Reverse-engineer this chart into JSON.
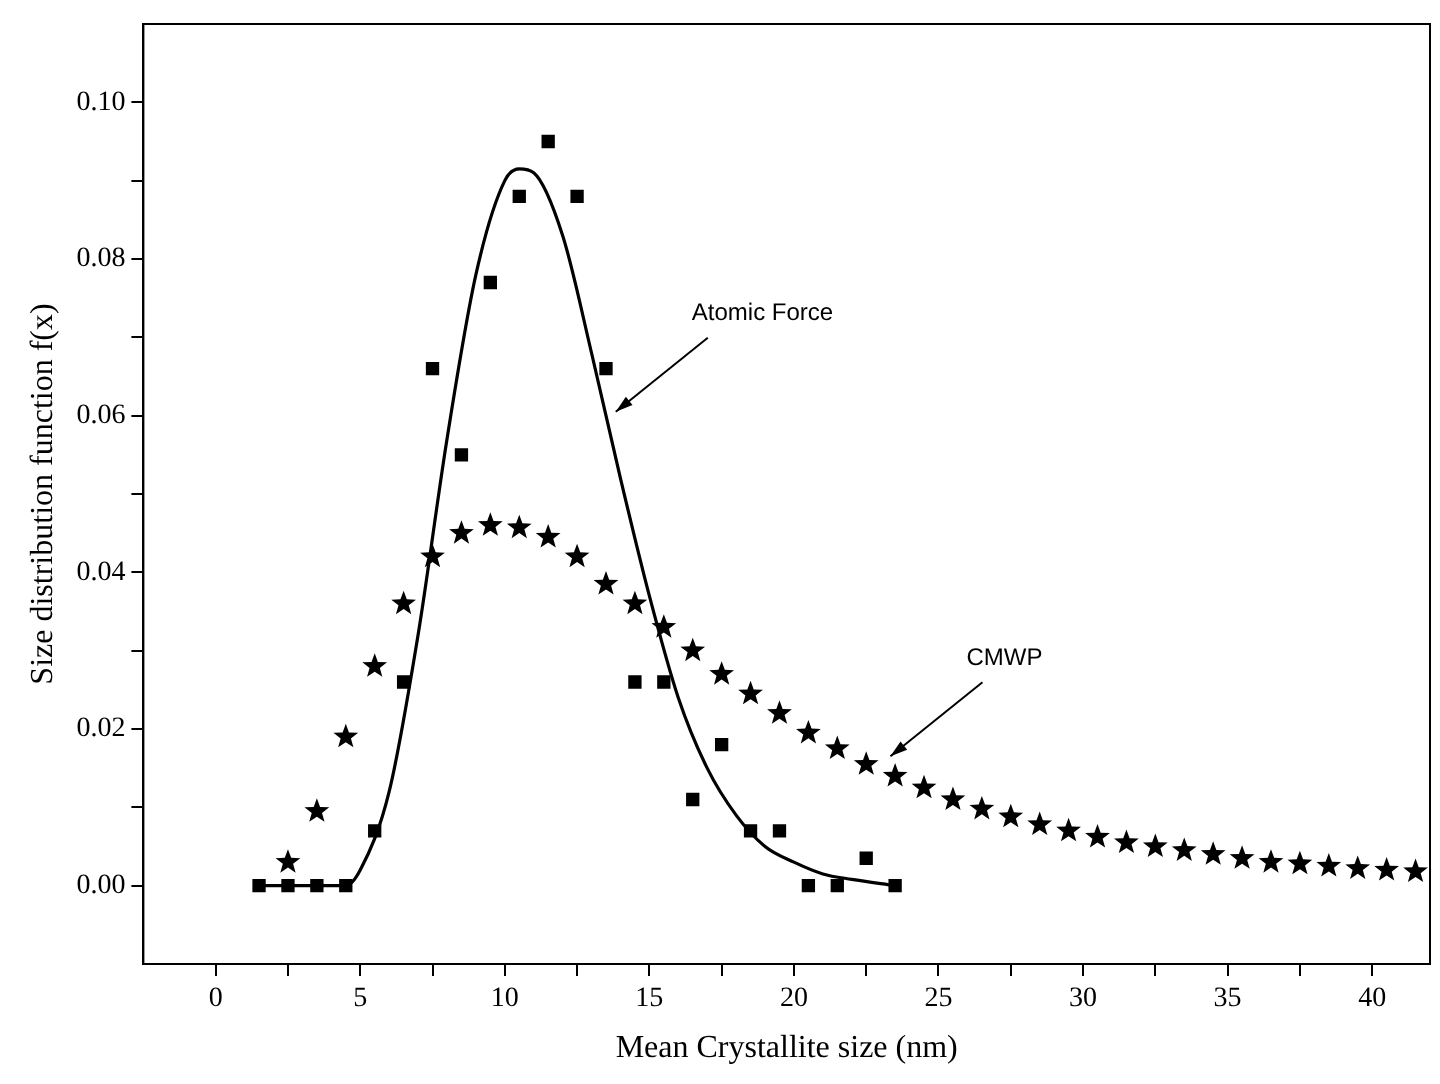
{
  "chart_data": {
    "type": "scatter",
    "xlabel": "Mean Crystallite size (nm)",
    "ylabel": "Size distribution function f(x)",
    "xlim": [
      -2.5,
      42
    ],
    "ylim": [
      -0.01,
      0.11
    ],
    "xticks": [
      0,
      {
        "value": 2.5,
        "label": null
      },
      5,
      {
        "value": 7.5,
        "label": null
      },
      10,
      {
        "value": 12.5,
        "label": null
      },
      15,
      {
        "value": 17.5,
        "label": null
      },
      20,
      {
        "value": 22.5,
        "label": null
      },
      25,
      {
        "value": 27.5,
        "label": null
      },
      30,
      {
        "value": 32.5,
        "label": null
      },
      35,
      {
        "value": 37.5,
        "label": null
      },
      40
    ],
    "yticks": [
      {
        "value": 0,
        "label": "0.00"
      },
      {
        "value": 0.01,
        "label": null
      },
      {
        "value": 0.02,
        "label": "0.02"
      },
      {
        "value": 0.03,
        "label": null
      },
      {
        "value": 0.04,
        "label": "0.04"
      },
      {
        "value": 0.05,
        "label": null
      },
      {
        "value": 0.06,
        "label": "0.06"
      },
      {
        "value": 0.07,
        "label": null
      },
      {
        "value": 0.08,
        "label": "0.08"
      },
      {
        "value": 0.09,
        "label": null
      },
      {
        "value": 0.1,
        "label": "0.10"
      }
    ],
    "grid": false,
    "legend": false,
    "series": [
      {
        "marker": "square",
        "color": "#000000",
        "x": [
          1.5,
          2.5,
          3.5,
          4.5,
          5.5,
          6.5,
          7.5,
          8.5,
          9.5,
          10.5,
          11.5,
          12.5,
          13.5,
          14.5,
          15.5,
          16.5,
          17.5,
          18.5,
          19.5,
          20.5,
          21.5,
          22.5,
          23.5
        ],
        "values": [
          0,
          0,
          0,
          0,
          0.007,
          0.026,
          0.066,
          0.055,
          0.077,
          0.088,
          0.095,
          0.088,
          0.066,
          0.026,
          0.026,
          0.011,
          0.018,
          0.007,
          0.007,
          0,
          0,
          0.0035,
          0
        ]
      },
      {
        "marker": "star",
        "color": "#000000",
        "x": [
          2.5,
          3.5,
          4.5,
          5.5,
          6.5,
          7.5,
          8.5,
          9.5,
          10.5,
          11.5,
          12.5,
          13.5,
          14.5,
          15.5,
          16.5,
          17.5,
          18.5,
          19.5,
          20.5,
          21.5,
          22.5,
          23.5,
          24.5,
          25.5,
          26.5,
          27.5,
          28.5,
          29.5,
          30.5,
          31.5,
          32.5,
          33.5,
          34.5,
          35.5,
          36.5,
          37.5,
          38.5,
          39.5,
          40.5,
          41.5
        ],
        "values": [
          0.003,
          0.0095,
          0.019,
          0.028,
          0.036,
          0.042,
          0.045,
          0.046,
          0.0457,
          0.0445,
          0.042,
          0.0385,
          0.036,
          0.033,
          0.03,
          0.027,
          0.0245,
          0.022,
          0.0195,
          0.0175,
          0.0155,
          0.014,
          0.0125,
          0.011,
          0.0098,
          0.0088,
          0.0078,
          0.007,
          0.0062,
          0.0055,
          0.005,
          0.0045,
          0.004,
          0.0035,
          0.003,
          0.0028,
          0.0025,
          0.0022,
          0.002,
          0.0018
        ]
      },
      {
        "type": "line",
        "marker": "none",
        "line_style": "solid",
        "color": "#000000",
        "x": [
          1.5,
          4.5,
          5,
          6,
          7,
          8,
          9,
          10,
          10.5,
          11,
          12,
          13,
          14,
          15,
          16,
          17,
          18,
          19,
          20,
          21,
          22,
          23.5
        ],
        "values": [
          0,
          0,
          0.002,
          0.012,
          0.032,
          0.057,
          0.078,
          0.09,
          0.0915,
          0.091,
          0.083,
          0.068,
          0.052,
          0.037,
          0.024,
          0.015,
          0.009,
          0.005,
          0.003,
          0.0015,
          0.0008,
          0
        ]
      }
    ],
    "annotations": [
      {
        "text": "Atomic Force",
        "x": 13.7,
        "y": 0.06
      },
      {
        "text": "CMWP",
        "x": 23.2,
        "y": 0.016
      }
    ]
  }
}
